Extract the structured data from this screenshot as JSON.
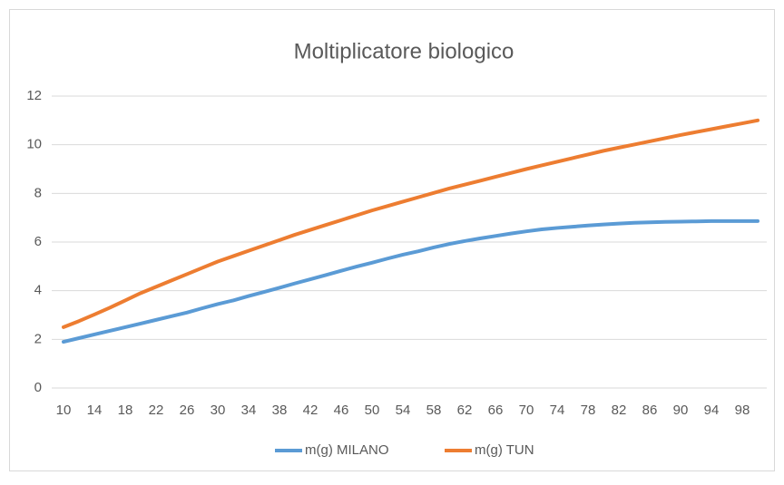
{
  "chart_data": {
    "type": "line",
    "title": "Moltiplicatore biologico",
    "x": [
      10,
      12,
      14,
      16,
      18,
      20,
      22,
      24,
      26,
      28,
      30,
      32,
      34,
      36,
      38,
      40,
      42,
      44,
      46,
      48,
      50,
      52,
      54,
      56,
      58,
      60,
      62,
      64,
      66,
      68,
      70,
      72,
      74,
      76,
      78,
      80,
      82,
      84,
      86,
      88,
      90,
      92,
      94,
      96,
      98,
      100
    ],
    "xlim": [
      9,
      101
    ],
    "xticks": [
      10,
      14,
      18,
      22,
      26,
      30,
      34,
      38,
      42,
      46,
      50,
      54,
      58,
      62,
      66,
      70,
      74,
      78,
      82,
      86,
      90,
      94,
      98
    ],
    "ylim": [
      0,
      12
    ],
    "yticks": [
      0,
      2,
      4,
      6,
      8,
      10,
      12
    ],
    "grid": true,
    "legend": "bottom",
    "series": [
      {
        "name": "m(g) MILANO",
        "color": "#5b9bd5",
        "values": [
          1.9,
          2.05,
          2.2,
          2.35,
          2.5,
          2.65,
          2.8,
          2.95,
          3.1,
          3.28,
          3.45,
          3.6,
          3.78,
          3.95,
          4.12,
          4.3,
          4.47,
          4.64,
          4.82,
          4.99,
          5.15,
          5.32,
          5.48,
          5.62,
          5.78,
          5.92,
          6.04,
          6.15,
          6.25,
          6.35,
          6.44,
          6.52,
          6.58,
          6.63,
          6.68,
          6.72,
          6.76,
          6.79,
          6.81,
          6.83,
          6.84,
          6.85,
          6.86,
          6.86,
          6.86,
          6.86
        ]
      },
      {
        "name": "m(g) TUN",
        "color": "#ed7d31",
        "values": [
          2.5,
          2.75,
          3.02,
          3.3,
          3.6,
          3.9,
          4.16,
          4.42,
          4.68,
          4.94,
          5.2,
          5.42,
          5.64,
          5.86,
          6.08,
          6.3,
          6.5,
          6.7,
          6.9,
          7.1,
          7.3,
          7.48,
          7.66,
          7.84,
          8.02,
          8.2,
          8.36,
          8.52,
          8.68,
          8.84,
          9.0,
          9.15,
          9.3,
          9.45,
          9.6,
          9.75,
          9.88,
          10.01,
          10.14,
          10.27,
          10.4,
          10.52,
          10.64,
          10.76,
          10.88,
          11.0
        ]
      }
    ]
  }
}
